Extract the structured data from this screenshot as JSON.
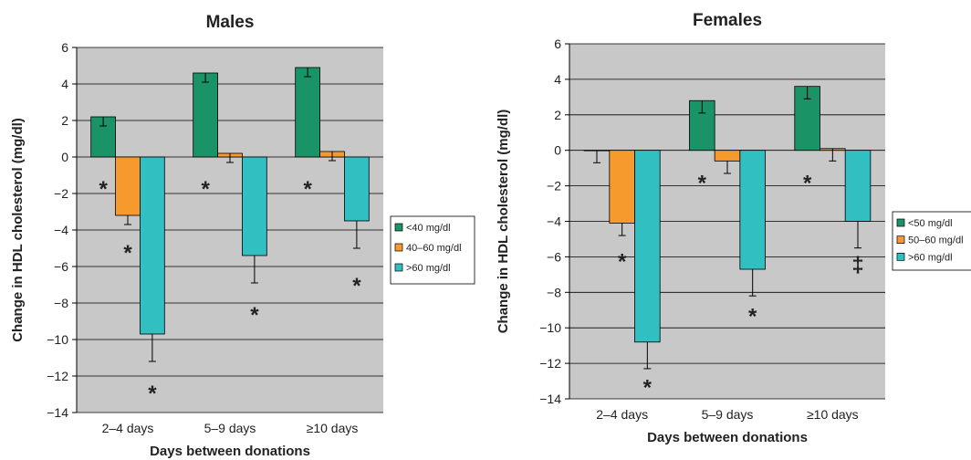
{
  "colors": {
    "plot_background": "#c8c8c8",
    "gridline": "#000000",
    "axis": "#000000"
  },
  "chart_data": [
    {
      "type": "bar",
      "title": "Males",
      "xlabel": "Days between donations",
      "ylabel": "Change in HDL cholesterol (mg/dl)",
      "ylim": [
        -14,
        6
      ],
      "yticks": [
        6,
        4,
        2,
        0,
        -2,
        -4,
        -6,
        -8,
        -10,
        -12,
        -14
      ],
      "ytick_labels": [
        "6",
        "4",
        "2",
        "0",
        "−2",
        "−4",
        "−6",
        "−8",
        "−10",
        "−12",
        "−14"
      ],
      "grid": true,
      "legend_position": "right",
      "categories": [
        "2–4 days",
        "5–9 days",
        "≥10 days"
      ],
      "series": [
        {
          "name": "<40 mg/dl",
          "color": "#1a9467",
          "values": [
            2.2,
            4.6,
            4.9
          ],
          "error": [
            0.5,
            0.5,
            0.5
          ]
        },
        {
          "name": "40–60 mg/dl",
          "color": "#f79a2e",
          "values": [
            -3.2,
            0.2,
            0.3
          ],
          "error": [
            0.5,
            0.5,
            0.5
          ]
        },
        {
          "name": ">60 mg/dl",
          "color": "#32bfc2",
          "values": [
            -9.7,
            -5.4,
            -3.5
          ],
          "error": [
            1.5,
            1.5,
            1.5
          ]
        }
      ],
      "annotations": [
        {
          "text": "*",
          "category": 0,
          "series": 0,
          "y": -1.7
        },
        {
          "text": "*",
          "category": 0,
          "series": 1,
          "y": -5.2
        },
        {
          "text": "*",
          "category": 0,
          "series": 2,
          "y": -12.9
        },
        {
          "text": "*",
          "category": 1,
          "series": 0,
          "y": -1.7
        },
        {
          "text": "*",
          "category": 1,
          "series": 2,
          "y": -8.6
        },
        {
          "text": "*",
          "category": 2,
          "series": 0,
          "y": -1.7
        },
        {
          "text": "*",
          "category": 2,
          "series": 2,
          "y": -7.0
        }
      ]
    },
    {
      "type": "bar",
      "title": "Females",
      "xlabel": "Days between donations",
      "ylabel": "Change in HDL cholesterol (mg/dl)",
      "ylim": [
        -14,
        6
      ],
      "yticks": [
        6,
        4,
        2,
        0,
        -2,
        -4,
        -6,
        -8,
        -10,
        -12,
        -14
      ],
      "ytick_labels": [
        "6",
        "4",
        "2",
        "0",
        "−2",
        "−4",
        "−6",
        "−8",
        "−10",
        "−12",
        "−14"
      ],
      "grid": true,
      "legend_position": "right",
      "categories": [
        "2–4 days",
        "5–9 days",
        "≥10 days"
      ],
      "series": [
        {
          "name": "<50 mg/dl",
          "color": "#1a9467",
          "values": [
            0,
            2.8,
            3.6
          ],
          "error": [
            0.7,
            0.7,
            0.7
          ]
        },
        {
          "name": "50–60 mg/dl",
          "color": "#f79a2e",
          "values": [
            -4.1,
            -0.6,
            0.1
          ],
          "error": [
            0.7,
            0.7,
            0.7
          ]
        },
        {
          "name": ">60 mg/dl",
          "color": "#32bfc2",
          "values": [
            -10.8,
            -6.7,
            -4.0
          ],
          "error": [
            1.5,
            1.5,
            1.5
          ]
        }
      ],
      "annotations": [
        {
          "text": "*",
          "category": 0,
          "series": 1,
          "y": -6.2
        },
        {
          "text": "*",
          "category": 0,
          "series": 2,
          "y": -13.3
        },
        {
          "text": "*",
          "category": 1,
          "series": 0,
          "y": -1.8
        },
        {
          "text": "*",
          "category": 1,
          "series": 2,
          "y": -9.3
        },
        {
          "text": "*",
          "category": 2,
          "series": 0,
          "y": -1.8
        },
        {
          "text": "‡",
          "category": 2,
          "series": 2,
          "y": -6.4
        }
      ]
    }
  ]
}
